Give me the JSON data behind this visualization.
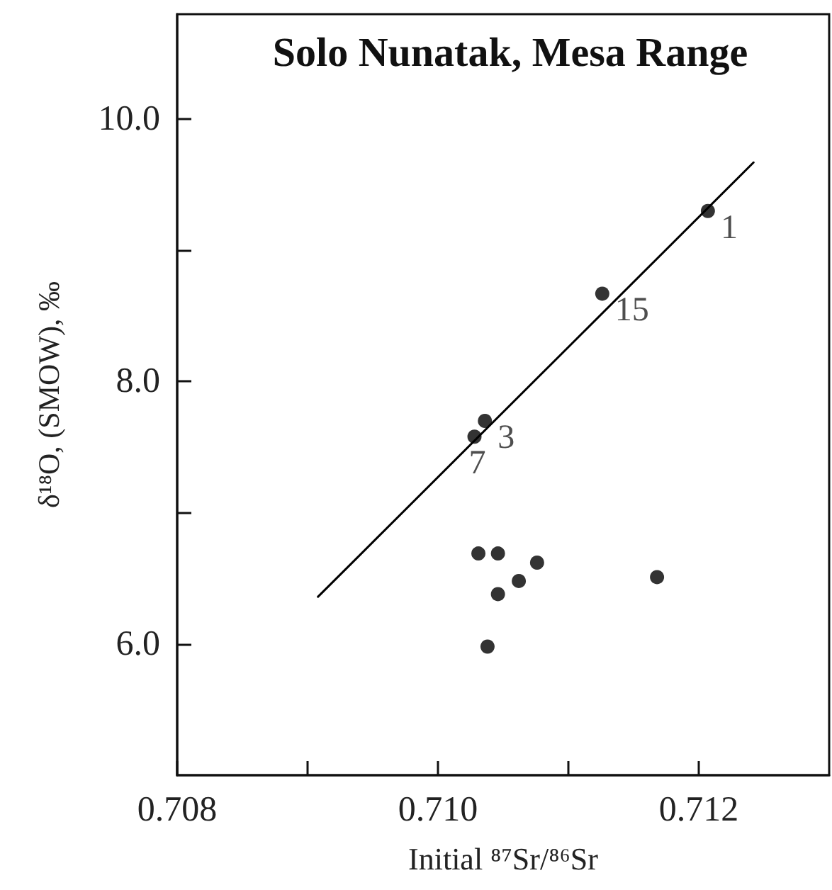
{
  "chart_data": {
    "type": "scatter",
    "title": "Solo Nunatak, Mesa Range",
    "xlabel": "Initial ⁸⁷Sr/⁸⁶Sr",
    "ylabel": "δ¹⁸O, (SMOW), ‰",
    "xlim": [
      0.708,
      0.713
    ],
    "ylim": [
      5.0,
      10.8
    ],
    "xticks": [
      {
        "value": 0.708,
        "label": "0.708"
      },
      {
        "value": 0.709,
        "label": null
      },
      {
        "value": 0.71,
        "label": "0.710"
      },
      {
        "value": 0.711,
        "label": null
      },
      {
        "value": 0.712,
        "label": "0.712"
      }
    ],
    "yticks": [
      {
        "value": 6,
        "label": "6.0"
      },
      {
        "value": 7,
        "label": null
      },
      {
        "value": 8,
        "label": "8.0"
      },
      {
        "value": 9,
        "label": null
      },
      {
        "value": 10,
        "label": "10.0"
      }
    ],
    "grid": false,
    "marker": "circle",
    "series": [
      {
        "color": "#000000",
        "x": [
          0.71207,
          0.71126,
          0.71036,
          0.71028,
          0.71031,
          0.71046,
          0.71076,
          0.71062,
          0.71046,
          0.71038,
          0.71168
        ],
        "values": [
          9.3,
          8.67,
          7.7,
          7.58,
          6.69,
          6.69,
          6.62,
          6.48,
          6.38,
          5.98,
          6.51
        ]
      },
      {
        "type": "line",
        "color": "#000000",
        "marker": "none",
        "line_style": "solid",
        "x": [
          0.70908,
          0.71242
        ],
        "values": [
          6.36,
          9.67
        ]
      }
    ],
    "annotations": [
      {
        "text": "1",
        "x": 0.71207,
        "y": 9.3
      },
      {
        "text": "15",
        "x": 0.71126,
        "y": 8.67
      },
      {
        "text": "3",
        "x": 0.71036,
        "y": 7.7
      },
      {
        "text": "7",
        "x": 0.71028,
        "y": 7.58
      }
    ]
  }
}
